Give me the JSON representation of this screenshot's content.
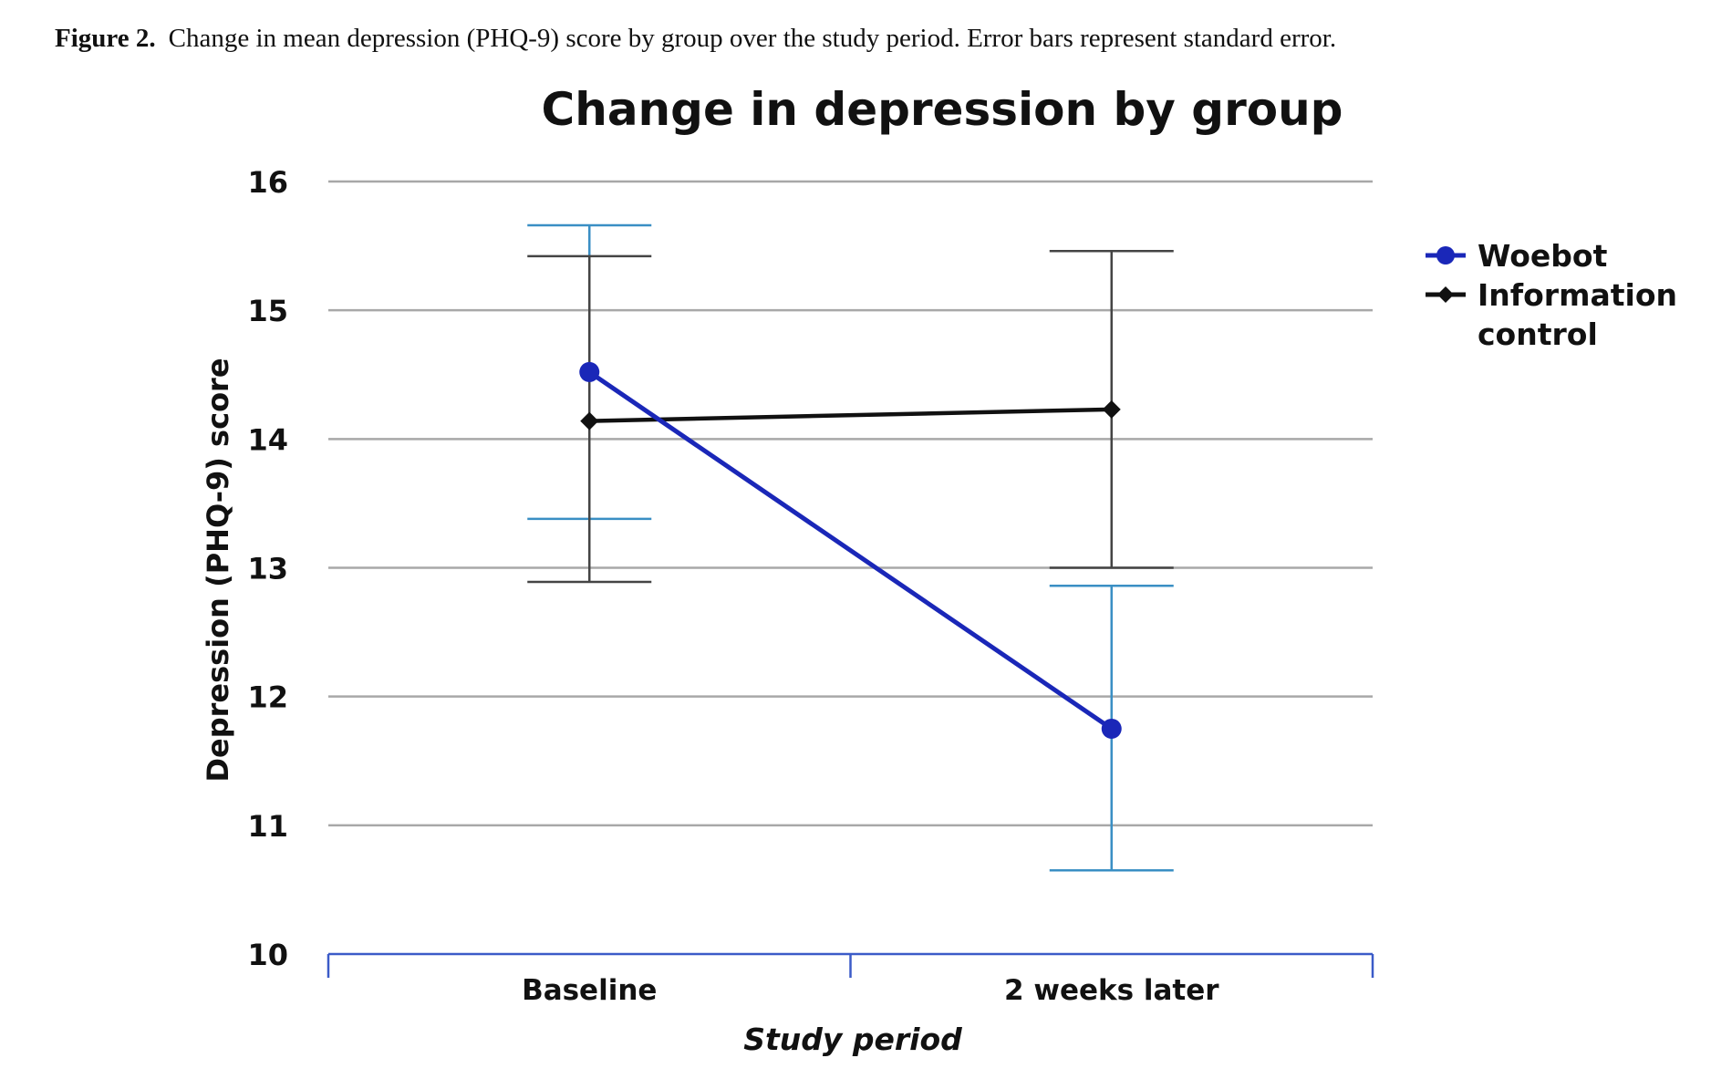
{
  "caption": {
    "label": "Figure 2.",
    "text": "Change in mean depression (PHQ-9) score by group over the study period. Error bars represent standard error."
  },
  "chart_data": {
    "type": "line",
    "title": "Change in depression by group",
    "xlabel": "Study period",
    "ylabel": "Depression (PHQ-9) score",
    "categories": [
      "Baseline",
      "2 weeks later"
    ],
    "ylim": [
      10,
      16
    ],
    "yticks": [
      10,
      11,
      12,
      13,
      14,
      15,
      16
    ],
    "grid": true,
    "legend_position": "right",
    "series": [
      {
        "name": "Woebot",
        "marker": "circle",
        "color": "#1a27b8",
        "error_color": "#3a8fc4",
        "values": [
          14.52,
          11.75
        ],
        "error_low": [
          13.38,
          10.65
        ],
        "error_high": [
          15.66,
          12.86
        ]
      },
      {
        "name": "Information control",
        "legend_lines": [
          "Information",
          "control"
        ],
        "marker": "diamond",
        "color": "#111111",
        "error_color": "#444444",
        "values": [
          14.14,
          14.23
        ],
        "error_low": [
          12.89,
          13.0
        ],
        "error_high": [
          15.42,
          15.46
        ]
      }
    ]
  }
}
